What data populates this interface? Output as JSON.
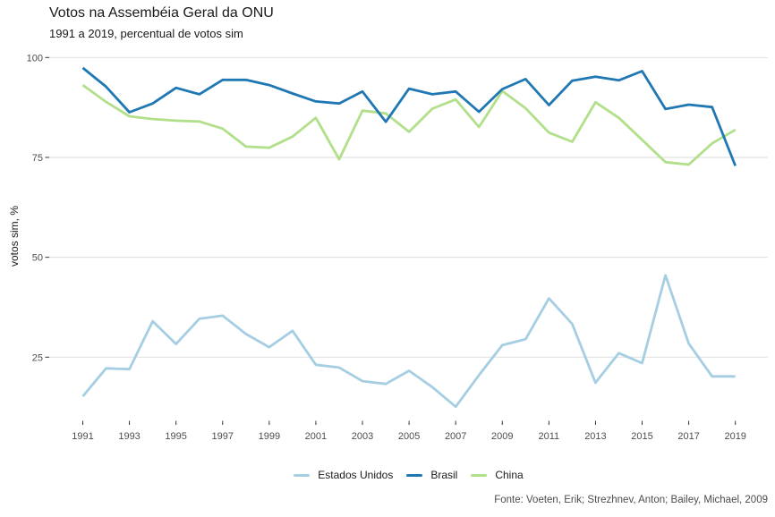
{
  "chart_data": {
    "type": "line",
    "title": "Votos na Assembéia Geral da ONU",
    "subtitle": "1991 a 2019, percentual de votos sim",
    "caption": "Fonte: Voeten, Erik; Strezhnev, Anton; Bailey, Michael, 2009",
    "xlabel": "",
    "ylabel": "votos sim, %",
    "xlim": [
      1991,
      2019
    ],
    "ylim": [
      11,
      100
    ],
    "x_ticks": [
      1991,
      1993,
      1995,
      1997,
      1999,
      2001,
      2003,
      2005,
      2007,
      2009,
      2011,
      2013,
      2015,
      2017,
      2019
    ],
    "y_ticks": [
      25,
      50,
      75,
      100
    ],
    "grid": "horizontal-only",
    "legend_position": "bottom",
    "x": [
      1991,
      1992,
      1993,
      1994,
      1995,
      1996,
      1997,
      1998,
      1999,
      2000,
      2001,
      2002,
      2003,
      2004,
      2005,
      2006,
      2007,
      2008,
      2009,
      2010,
      2011,
      2012,
      2013,
      2014,
      2015,
      2016,
      2017,
      2018,
      2019
    ],
    "series": [
      {
        "name": "Estados Unidos",
        "color": "#a6cee3",
        "values": [
          15.2,
          22.2,
          22.0,
          34.0,
          28.3,
          34.6,
          35.4,
          30.8,
          27.5,
          31.6,
          23.1,
          22.4,
          19.0,
          18.3,
          21.6,
          17.5,
          12.6,
          20.5,
          28.0,
          29.5,
          39.7,
          33.3,
          18.6,
          26.0,
          23.5,
          45.5,
          28.4,
          20.2,
          20.2
        ]
      },
      {
        "name": "Brasil",
        "color": "#1f78b4",
        "values": [
          97.4,
          92.7,
          86.3,
          88.5,
          92.4,
          90.8,
          94.4,
          94.4,
          93.1,
          91.0,
          89.0,
          88.5,
          91.5,
          83.9,
          92.2,
          90.8,
          91.5,
          86.4,
          92.1,
          94.6,
          88.1,
          94.2,
          95.2,
          94.3,
          96.6,
          87.1,
          88.2,
          87.6,
          72.9
        ]
      },
      {
        "name": "China",
        "color": "#b2df8a",
        "values": [
          93.1,
          88.9,
          85.3,
          84.6,
          84.2,
          84.0,
          82.2,
          77.7,
          77.4,
          80.2,
          84.9,
          74.5,
          86.7,
          86.0,
          81.4,
          87.2,
          89.5,
          82.6,
          91.6,
          87.3,
          81.2,
          78.9,
          88.8,
          84.9,
          79.4,
          73.8,
          73.2,
          78.5,
          81.9
        ]
      }
    ]
  },
  "colors": {
    "background": "#ffffff",
    "grid": "#e2e2e2",
    "tick": "#333333",
    "axis_text": "#4d4d4d",
    "text": "#1a1a1a"
  }
}
